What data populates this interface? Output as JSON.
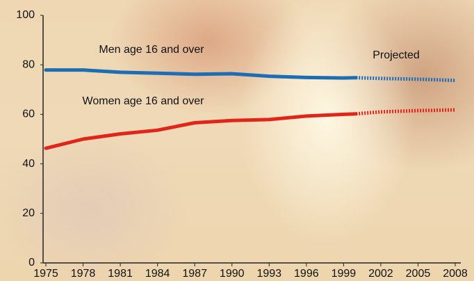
{
  "chart_data": {
    "type": "line",
    "annotation": "Projected",
    "x": [
      1975,
      1978,
      1981,
      1984,
      1987,
      1990,
      1993,
      1996,
      1999,
      2000,
      2002,
      2005,
      2008
    ],
    "series": [
      {
        "name": "Men age 16 and over",
        "color": "#1b6db5",
        "values": [
          77.9,
          77.9,
          77.0,
          76.6,
          76.2,
          76.4,
          75.4,
          74.9,
          74.7,
          74.8,
          null,
          null,
          null
        ],
        "projected": [
          null,
          null,
          null,
          null,
          null,
          null,
          null,
          null,
          null,
          74.8,
          74.5,
          74.2,
          73.7
        ]
      },
      {
        "name": "Women age 16 and over",
        "color": "#e0251b",
        "values": [
          46.3,
          50.0,
          52.1,
          53.6,
          56.6,
          57.5,
          57.9,
          59.3,
          60.0,
          60.2,
          null,
          null,
          null
        ],
        "projected": [
          null,
          null,
          null,
          null,
          null,
          null,
          null,
          null,
          null,
          60.2,
          61.0,
          61.5,
          61.8
        ]
      }
    ],
    "xlim": [
      1975,
      2008
    ],
    "xticks": [
      1975,
      1978,
      1981,
      1984,
      1987,
      1990,
      1993,
      1996,
      1999,
      2002,
      2005,
      2008
    ],
    "ylim": [
      0,
      100
    ],
    "yticks": [
      0,
      20,
      40,
      60,
      80,
      100
    ]
  }
}
